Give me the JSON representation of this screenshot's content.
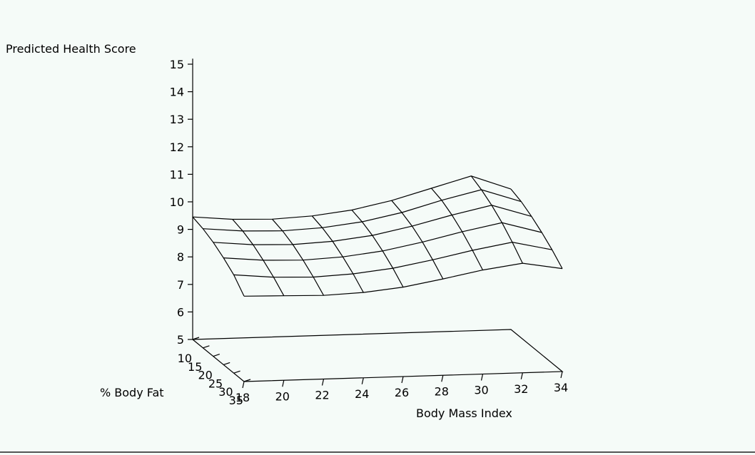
{
  "chart_data": {
    "type": "surface3d",
    "title": "",
    "zlabel": "Predicted Health Score",
    "xlabel": "Body Mass Index",
    "ylabel": "% Body Fat",
    "z_ticks": [
      "5",
      "6",
      "7",
      "8",
      "9",
      "10",
      "11",
      "12",
      "13",
      "14",
      "15"
    ],
    "x_ticks": [
      "18",
      "20",
      "22",
      "24",
      "26",
      "28",
      "30",
      "32",
      "34"
    ],
    "y_ticks": [
      "10",
      "15",
      "20",
      "25",
      "30",
      "35"
    ],
    "zlim": [
      5,
      15
    ],
    "xlim": [
      18,
      34
    ],
    "ylim": [
      10,
      35
    ],
    "bmi": [
      18,
      20,
      22,
      24,
      26,
      28,
      30,
      32,
      34
    ],
    "body_fat": [
      10,
      15,
      20,
      25,
      30,
      35
    ],
    "z": [
      [
        9.45,
        9.32,
        9.28,
        9.35,
        9.52,
        9.82,
        10.22,
        10.62,
        10.1
      ],
      [
        9.33,
        9.2,
        9.16,
        9.23,
        9.4,
        9.69,
        10.09,
        10.43,
        9.95
      ],
      [
        9.14,
        9.01,
        8.97,
        9.04,
        9.21,
        9.5,
        9.86,
        10.17,
        9.72
      ],
      [
        8.88,
        8.75,
        8.71,
        8.78,
        8.95,
        9.23,
        9.56,
        9.84,
        9.44
      ],
      [
        8.57,
        8.44,
        8.4,
        8.47,
        8.63,
        8.89,
        9.19,
        9.44,
        9.12
      ],
      [
        8.1,
        8.07,
        8.04,
        8.1,
        8.25,
        8.5,
        8.78,
        8.98,
        8.74
      ]
    ]
  }
}
